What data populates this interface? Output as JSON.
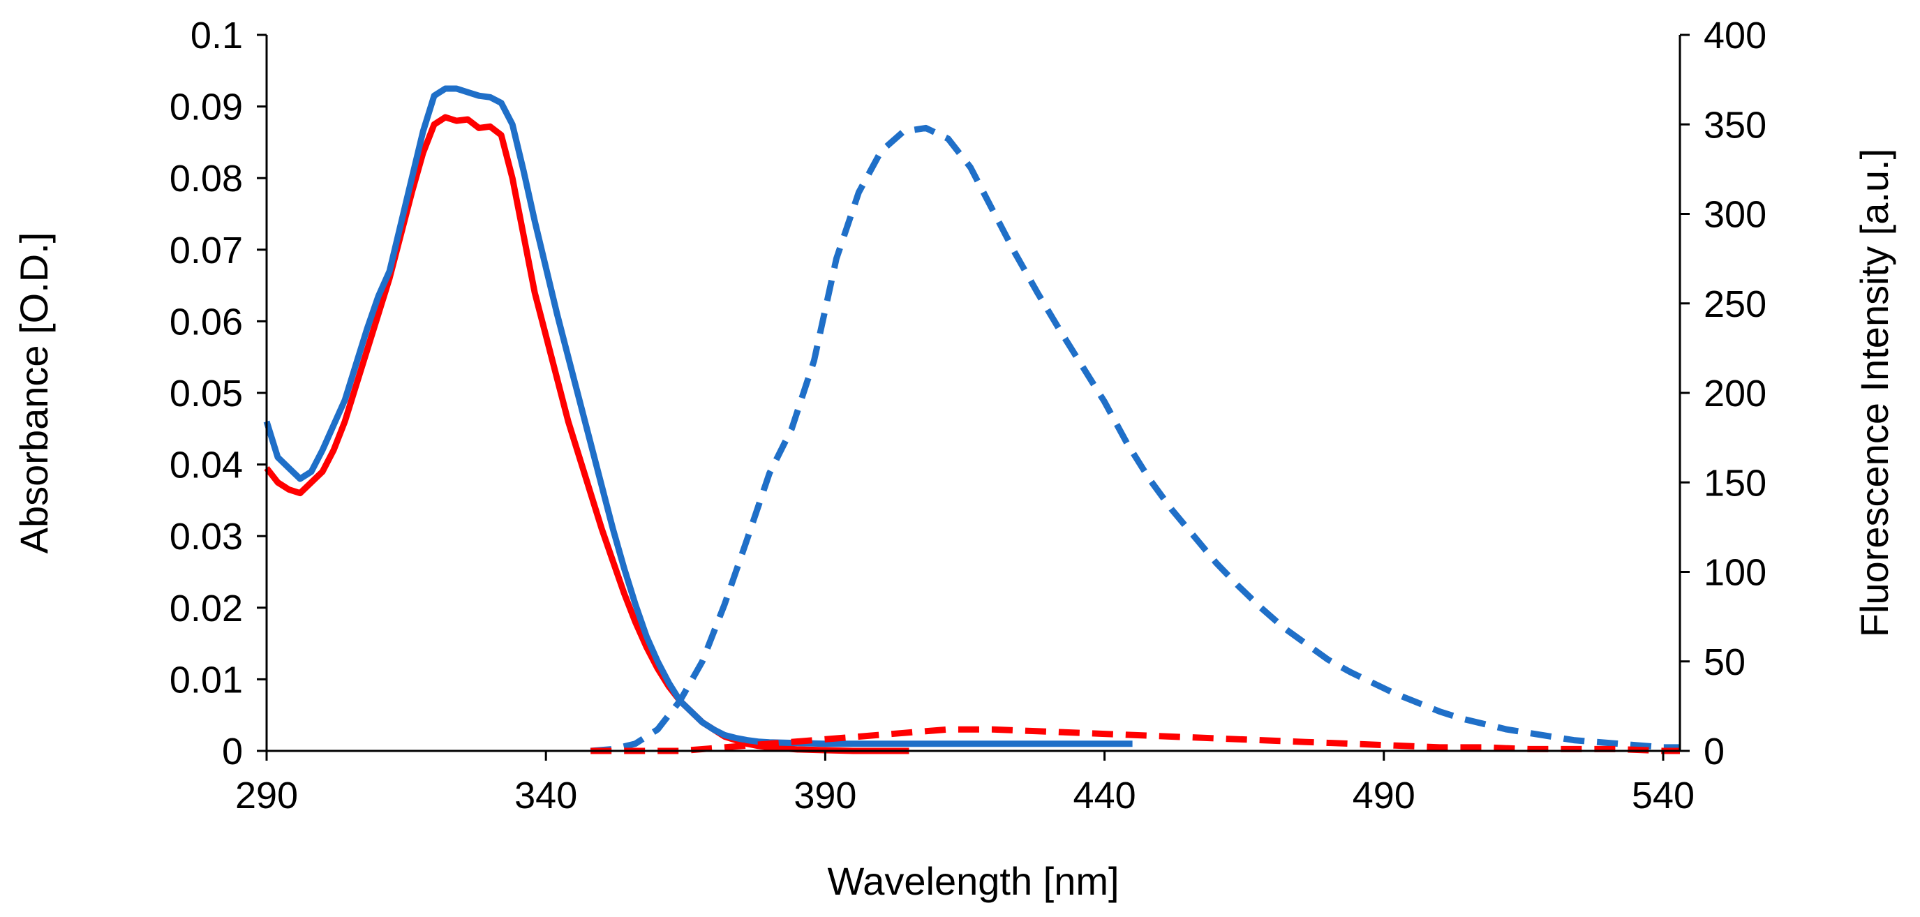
{
  "chart_data": {
    "type": "line",
    "title": "",
    "xlabel": "Wavelength [nm]",
    "ylabel_left": "Absorbance [O.D.]",
    "ylabel_right": "Fluorescence Intensity [a.u.]",
    "xlim": [
      290,
      543
    ],
    "ylim_left": [
      0,
      0.1
    ],
    "ylim_right": [
      0,
      400
    ],
    "x_ticks": [
      290,
      340,
      390,
      440,
      490,
      540
    ],
    "x_tick_labels": [
      "290",
      "340",
      "390",
      "440",
      "490",
      "540"
    ],
    "y_left_ticks": [
      0,
      0.01,
      0.02,
      0.03,
      0.04,
      0.05,
      0.06,
      0.07,
      0.08,
      0.09,
      0.1
    ],
    "y_left_tick_labels": [
      "0",
      "0.01",
      "0.02",
      "0.03",
      "0.04",
      "0.05",
      "0.06",
      "0.07",
      "0.08",
      "0.09",
      "0.1"
    ],
    "y_right_ticks": [
      0,
      50,
      100,
      150,
      200,
      250,
      300,
      350,
      400
    ],
    "y_right_tick_labels": [
      "0",
      "50",
      "100",
      "150",
      "200",
      "250",
      "300",
      "350",
      "400"
    ],
    "grid": false,
    "legend": "none",
    "series": [
      {
        "name": "Absorbance (red)",
        "axis": "left",
        "color": "#ff0000",
        "style": "solid",
        "x": [
          290,
          292,
          294,
          296,
          298,
          300,
          302,
          304,
          306,
          308,
          310,
          312,
          314,
          316,
          318,
          320,
          322,
          324,
          326,
          328,
          330,
          332,
          334,
          336,
          338,
          340,
          342,
          344,
          346,
          348,
          350,
          352,
          354,
          356,
          358,
          360,
          362,
          364,
          366,
          368,
          370,
          372,
          374,
          376,
          378,
          380,
          385,
          390,
          395,
          400,
          405
        ],
        "values": [
          0.0395,
          0.0375,
          0.0365,
          0.036,
          0.0375,
          0.039,
          0.042,
          0.046,
          0.051,
          0.056,
          0.061,
          0.066,
          0.072,
          0.078,
          0.0835,
          0.0875,
          0.0885,
          0.088,
          0.0882,
          0.087,
          0.0872,
          0.086,
          0.08,
          0.072,
          0.064,
          0.058,
          0.052,
          0.046,
          0.041,
          0.036,
          0.031,
          0.0265,
          0.022,
          0.018,
          0.0145,
          0.0115,
          0.009,
          0.007,
          0.0055,
          0.004,
          0.003,
          0.002,
          0.0015,
          0.001,
          0.0007,
          0.0005,
          0.0002,
          0.0001,
          0.0,
          0.0,
          0.0
        ]
      },
      {
        "name": "Absorbance (blue)",
        "axis": "left",
        "color": "#1f6fc8",
        "style": "solid",
        "x": [
          290,
          292,
          294,
          296,
          298,
          300,
          302,
          304,
          306,
          308,
          310,
          312,
          314,
          316,
          318,
          320,
          322,
          324,
          326,
          328,
          330,
          332,
          334,
          336,
          338,
          340,
          342,
          344,
          346,
          348,
          350,
          352,
          354,
          356,
          358,
          360,
          362,
          364,
          366,
          368,
          370,
          372,
          374,
          376,
          378,
          380,
          385,
          390,
          400,
          410,
          420,
          430,
          440,
          445
        ],
        "values": [
          0.046,
          0.041,
          0.0395,
          0.038,
          0.039,
          0.042,
          0.0455,
          0.049,
          0.054,
          0.059,
          0.0635,
          0.067,
          0.0735,
          0.08,
          0.0865,
          0.0915,
          0.0925,
          0.0925,
          0.092,
          0.0915,
          0.0913,
          0.0905,
          0.0875,
          0.081,
          0.074,
          0.0675,
          0.061,
          0.055,
          0.049,
          0.043,
          0.037,
          0.031,
          0.0255,
          0.0205,
          0.016,
          0.0125,
          0.0095,
          0.007,
          0.0055,
          0.004,
          0.003,
          0.0022,
          0.0018,
          0.0015,
          0.0013,
          0.0012,
          0.0011,
          0.001,
          0.001,
          0.001,
          0.001,
          0.001,
          0.001,
          0.001
        ]
      },
      {
        "name": "Fluorescence (blue)",
        "axis": "right",
        "color": "#1f6fc8",
        "style": "dashed",
        "x": [
          348,
          352,
          356,
          360,
          364,
          368,
          372,
          376,
          380,
          384,
          388,
          392,
          396,
          400,
          404,
          408,
          412,
          416,
          420,
          424,
          428,
          432,
          436,
          440,
          444,
          448,
          452,
          456,
          460,
          464,
          468,
          472,
          476,
          480,
          484,
          488,
          492,
          496,
          500,
          504,
          508,
          512,
          516,
          520,
          524,
          528,
          532,
          536,
          540,
          543
        ],
        "values": [
          0,
          1,
          4,
          12,
          28,
          50,
          82,
          118,
          155,
          180,
          218,
          275,
          312,
          335,
          346,
          348,
          342,
          326,
          302,
          278,
          256,
          235,
          215,
          195,
          172,
          152,
          135,
          120,
          105,
          92,
          80,
          69,
          60,
          51,
          44,
          38,
          32,
          27,
          22,
          18,
          15,
          12,
          10,
          8,
          6,
          5,
          4,
          3,
          2,
          2
        ]
      },
      {
        "name": "Fluorescence (red)",
        "axis": "right",
        "color": "#ff0000",
        "style": "dashed",
        "x": [
          348,
          356,
          364,
          372,
          380,
          388,
          396,
          404,
          412,
          420,
          428,
          436,
          444,
          452,
          460,
          468,
          476,
          484,
          492,
          500,
          508,
          516,
          524,
          532,
          540,
          543
        ],
        "values": [
          0,
          0,
          0,
          2,
          4,
          6,
          8,
          10,
          12,
          12,
          11,
          10,
          9,
          8,
          7,
          6,
          5,
          4,
          3,
          2,
          2,
          1,
          1,
          1,
          0,
          0
        ]
      }
    ]
  }
}
